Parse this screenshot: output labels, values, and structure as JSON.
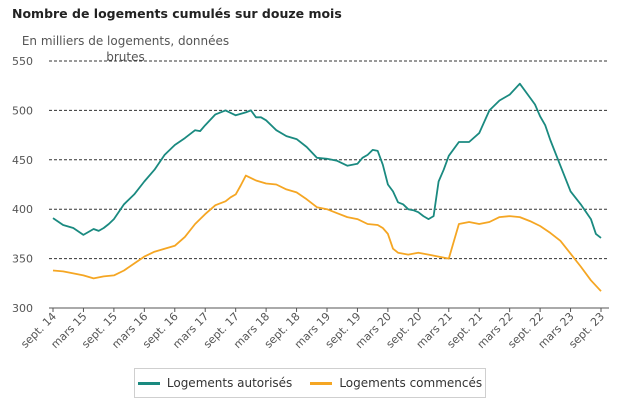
{
  "chart_data": {
    "type": "line",
    "title": "Nombre de logements cumulés sur douze mois",
    "ylabel": "En milliers de logements, données brutes",
    "ylim": [
      300,
      550
    ],
    "yticks": [
      300,
      350,
      400,
      450,
      500,
      550
    ],
    "grid": "horizontal dashed",
    "legend": "bottom",
    "x_tick_labels": [
      "sept. 14",
      "mars 15",
      "sept. 15",
      "mars 16",
      "sept. 16",
      "mars 17",
      "sept. 17",
      "mars 18",
      "sept. 18",
      "mars 19",
      "sept. 19",
      "mars 20",
      "sept. 20",
      "mars 21",
      "sept. 21",
      "mars 22",
      "sept. 22",
      "mars 23",
      "sept. 23"
    ],
    "x_tick_months": [
      0,
      6,
      12,
      18,
      24,
      30,
      36,
      42,
      48,
      54,
      60,
      66,
      72,
      78,
      84,
      90,
      96,
      102,
      108
    ],
    "colors": {
      "autorises": "#1a8a80",
      "commences": "#f5a623"
    },
    "series": [
      {
        "name": "Logements autorisés",
        "x_months": [
          0,
          2,
          4,
          6,
          8,
          9,
          10,
          11,
          12,
          14,
          16,
          18,
          20,
          22,
          24,
          26,
          28,
          29,
          30,
          32,
          34,
          36,
          38,
          39,
          40,
          41,
          42,
          44,
          46,
          48,
          50,
          52,
          54,
          56,
          58,
          60,
          61,
          62,
          63,
          64,
          65,
          66,
          67,
          68,
          69,
          70,
          71,
          72,
          73,
          74,
          75,
          76,
          77,
          78,
          80,
          82,
          84,
          86,
          88,
          90,
          92,
          94,
          95,
          96,
          97,
          98,
          100,
          102,
          104,
          106,
          107,
          108
        ],
        "values": [
          391,
          384,
          381,
          374,
          380,
          378,
          381,
          385,
          390,
          405,
          415,
          428,
          440,
          455,
          465,
          472,
          480,
          479,
          485,
          496,
          500,
          495,
          498,
          500,
          493,
          493,
          490,
          480,
          474,
          471,
          463,
          452,
          451,
          449,
          444,
          446,
          452,
          455,
          460,
          459,
          445,
          425,
          418,
          407,
          405,
          400,
          399,
          397,
          393,
          390,
          393,
          428,
          440,
          454,
          468,
          468,
          477,
          500,
          510,
          516,
          527,
          513,
          506,
          494,
          485,
          470,
          444,
          418,
          405,
          390,
          375,
          371
        ]
      },
      {
        "name": "Logements commencés",
        "x_months": [
          0,
          2,
          4,
          6,
          8,
          10,
          12,
          14,
          16,
          18,
          20,
          22,
          24,
          26,
          28,
          30,
          32,
          34,
          35,
          36,
          37,
          38,
          40,
          42,
          44,
          46,
          48,
          50,
          52,
          54,
          56,
          58,
          60,
          62,
          64,
          65,
          66,
          67,
          68,
          70,
          72,
          74,
          76,
          78,
          80,
          82,
          84,
          86,
          88,
          90,
          92,
          94,
          96,
          98,
          100,
          102,
          104,
          106,
          108
        ],
        "values": [
          338,
          337,
          335,
          333,
          330,
          332,
          333,
          338,
          345,
          352,
          357,
          360,
          363,
          372,
          385,
          395,
          404,
          408,
          412,
          415,
          424,
          434,
          429,
          426,
          425,
          420,
          417,
          410,
          402,
          400,
          396,
          392,
          390,
          385,
          384,
          381,
          375,
          360,
          356,
          354,
          356,
          354,
          352,
          350,
          385,
          387,
          385,
          387,
          392,
          393,
          392,
          388,
          383,
          376,
          368,
          355,
          342,
          328,
          317
        ]
      }
    ]
  }
}
